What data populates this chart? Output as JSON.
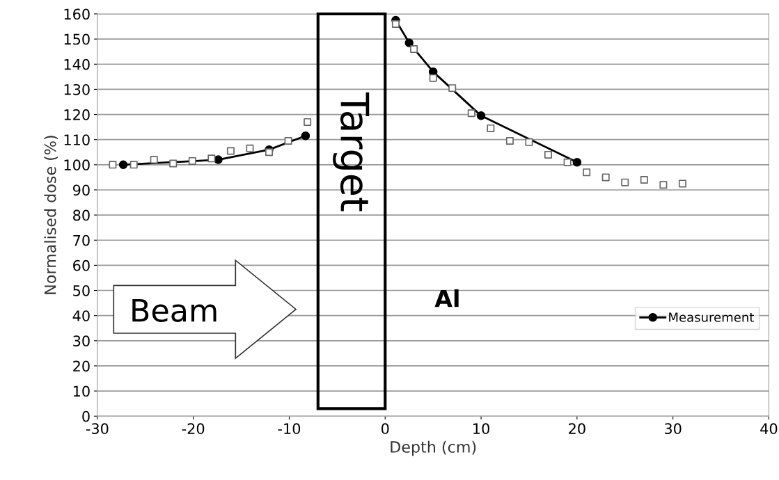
{
  "chart_data": {
    "type": "line",
    "xlabel": "Depth (cm)",
    "ylabel": "Normalised dose (%)",
    "xlim": [
      -30,
      40
    ],
    "xticks": [
      -30,
      -20,
      -10,
      0,
      10,
      20,
      30,
      40
    ],
    "ylim": [
      0,
      160
    ],
    "yticks": [
      0,
      10,
      20,
      30,
      40,
      50,
      60,
      70,
      80,
      90,
      100,
      110,
      120,
      130,
      140,
      150,
      160
    ],
    "grid": "y",
    "legend": "bottom right",
    "series": [
      {
        "name": "Measurement",
        "marker": "circle",
        "color": "#000000",
        "x": [
          -27.3,
          -17.4,
          -12.1,
          -8.3,
          -4,
          1.1,
          2.5,
          5,
          10,
          20
        ],
        "values": [
          100,
          102,
          106,
          111.5,
          null,
          157.5,
          148.5,
          137,
          119.5,
          101
        ]
      },
      {
        "type": "scatter",
        "marker": "square",
        "color": "#666666",
        "x": [
          -28.4,
          -26.2,
          -24.1,
          -22.1,
          -20.1,
          -18.1,
          -16.1,
          -14.1,
          -12.1,
          -10.1,
          -8.1,
          1.1,
          3,
          5,
          7,
          9,
          11,
          13,
          15,
          17,
          19,
          21,
          23,
          25,
          27,
          29,
          31
        ],
        "values": [
          100,
          100,
          102,
          100.5,
          101.5,
          102.5,
          105.5,
          106.5,
          105,
          109.5,
          117,
          156,
          146,
          134.5,
          130.5,
          120.5,
          114.5,
          109.5,
          109,
          104,
          101,
          97,
          95,
          93,
          94,
          92,
          92.5
        ]
      }
    ],
    "annotations": [
      "Target",
      "Beam",
      "Al"
    ]
  }
}
